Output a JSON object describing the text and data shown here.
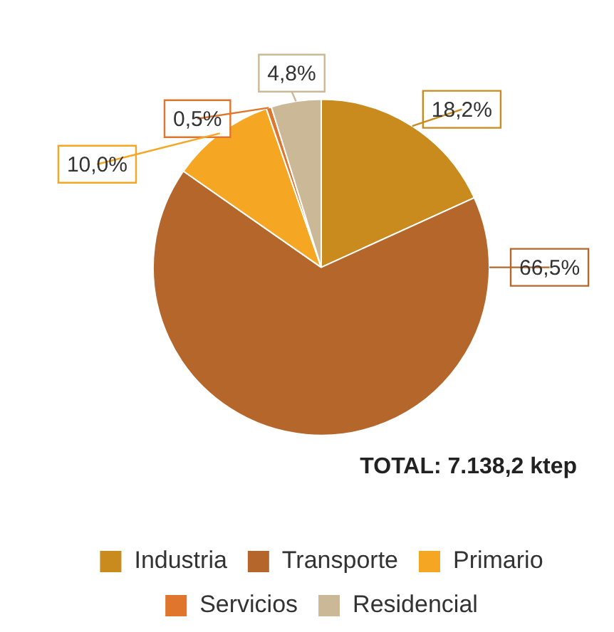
{
  "chart_data": {
    "type": "pie",
    "categories": [
      "Industria",
      "Transporte",
      "Primario",
      "Servicios",
      "Residencial"
    ],
    "values": [
      18.2,
      66.5,
      10.0,
      0.5,
      4.8
    ],
    "colors": [
      "#c98a1e",
      "#b5662a",
      "#f5a623",
      "#e0762d",
      "#cbb897"
    ],
    "value_labels": [
      "18,2%",
      "66,5%",
      "10,0%",
      "0,5%",
      "4,8%"
    ],
    "annotations": [
      "TOTAL: 7.138,2 ktep"
    ],
    "legend": "bottom"
  }
}
